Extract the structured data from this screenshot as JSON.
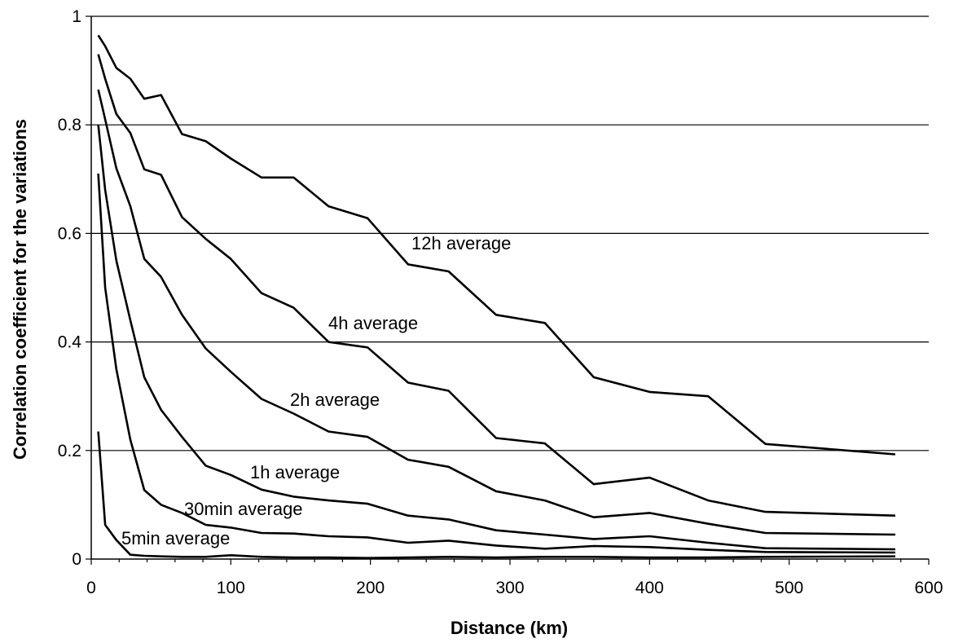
{
  "chart_data": {
    "type": "line",
    "title": "",
    "xlabel": "Distance  (km)",
    "ylabel": "Correlation coefficient for the variations",
    "xlim": [
      0,
      600
    ],
    "ylim": [
      0,
      1
    ],
    "x_ticks": [
      "0",
      "100",
      "200",
      "300",
      "400",
      "500",
      "600"
    ],
    "y_ticks": [
      "0",
      "0.2",
      "0.4",
      "0.6",
      "0.8",
      "1"
    ],
    "grid": "horizontal",
    "legend": "none (series labelled inline)",
    "line_color": "#000000",
    "series": [
      {
        "name": "12h average",
        "x": [
          5,
          10,
          18,
          28,
          38,
          50,
          65,
          82,
          100,
          122,
          145,
          170,
          198,
          227,
          256,
          290,
          325,
          360,
          400,
          442,
          483,
          576
        ],
        "y": [
          0.965,
          0.945,
          0.905,
          0.885,
          0.848,
          0.855,
          0.783,
          0.77,
          0.738,
          0.703,
          0.703,
          0.65,
          0.628,
          0.543,
          0.53,
          0.45,
          0.435,
          0.335,
          0.308,
          0.3,
          0.212,
          0.193
        ]
      },
      {
        "name": "4h average",
        "x": [
          5,
          10,
          18,
          28,
          38,
          50,
          65,
          82,
          100,
          122,
          145,
          170,
          198,
          227,
          256,
          290,
          325,
          360,
          400,
          442,
          483,
          576
        ],
        "y": [
          0.93,
          0.885,
          0.82,
          0.785,
          0.718,
          0.708,
          0.63,
          0.59,
          0.553,
          0.49,
          0.463,
          0.4,
          0.39,
          0.325,
          0.31,
          0.223,
          0.213,
          0.138,
          0.15,
          0.108,
          0.087,
          0.08
        ]
      },
      {
        "name": "2h average",
        "x": [
          5,
          10,
          18,
          28,
          38,
          50,
          65,
          82,
          100,
          122,
          145,
          170,
          198,
          227,
          256,
          290,
          325,
          360,
          400,
          442,
          483,
          576
        ],
        "y": [
          0.865,
          0.81,
          0.72,
          0.65,
          0.553,
          0.52,
          0.45,
          0.388,
          0.345,
          0.295,
          0.268,
          0.235,
          0.225,
          0.183,
          0.17,
          0.125,
          0.108,
          0.077,
          0.085,
          0.065,
          0.048,
          0.045
        ]
      },
      {
        "name": "1h average",
        "x": [
          5,
          10,
          18,
          28,
          38,
          50,
          65,
          82,
          100,
          122,
          145,
          170,
          198,
          227,
          256,
          290,
          325,
          360,
          400,
          442,
          483,
          576
        ],
        "y": [
          0.8,
          0.68,
          0.55,
          0.44,
          0.335,
          0.275,
          0.225,
          0.172,
          0.155,
          0.128,
          0.115,
          0.108,
          0.102,
          0.08,
          0.073,
          0.053,
          0.045,
          0.037,
          0.042,
          0.03,
          0.02,
          0.018
        ]
      },
      {
        "name": "30min average",
        "x": [
          5,
          10,
          18,
          28,
          38,
          50,
          65,
          82,
          100,
          122,
          145,
          170,
          198,
          227,
          256,
          290,
          325,
          360,
          400,
          442,
          483,
          576
        ],
        "y": [
          0.71,
          0.5,
          0.35,
          0.22,
          0.127,
          0.1,
          0.085,
          0.063,
          0.058,
          0.048,
          0.047,
          0.042,
          0.04,
          0.03,
          0.034,
          0.025,
          0.019,
          0.024,
          0.022,
          0.017,
          0.013,
          0.012
        ]
      },
      {
        "name": "5min average",
        "x": [
          5,
          10,
          18,
          28,
          38,
          50,
          65,
          82,
          100,
          122,
          145,
          170,
          198,
          227,
          256,
          290,
          325,
          360,
          400,
          442,
          483,
          576
        ],
        "y": [
          0.235,
          0.063,
          0.035,
          0.008,
          0.006,
          0.005,
          0.004,
          0.004,
          0.007,
          0.004,
          0.003,
          0.003,
          0.002,
          0.003,
          0.004,
          0.003,
          0.004,
          0.004,
          0.003,
          0.003,
          0.004,
          0.005
        ]
      }
    ]
  }
}
